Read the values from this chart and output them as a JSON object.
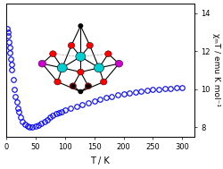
{
  "title": "",
  "xlabel": "T / K",
  "ylabel": "χₘT / emu K mol⁻¹",
  "xlim": [
    0,
    320
  ],
  "ylim": [
    7.5,
    14.5
  ],
  "yticks": [
    8,
    10,
    12,
    14
  ],
  "xticks": [
    0,
    50,
    100,
    150,
    200,
    250,
    300
  ],
  "marker_color": "blue",
  "marker": "o",
  "marker_size": 4,
  "bg_color": "#ffffff",
  "data_T": [
    2,
    3,
    4,
    5,
    6,
    7,
    8,
    9,
    10,
    12,
    14,
    16,
    18,
    20,
    22,
    25,
    28,
    32,
    36,
    40,
    45,
    50,
    55,
    60,
    65,
    70,
    75,
    80,
    85,
    90,
    95,
    100,
    110,
    120,
    130,
    140,
    150,
    160,
    170,
    180,
    190,
    200,
    210,
    220,
    230,
    240,
    250,
    260,
    270,
    280,
    290,
    300
  ],
  "data_chiT": [
    13.2,
    13.0,
    12.8,
    12.5,
    12.2,
    11.9,
    11.6,
    11.3,
    11.0,
    10.5,
    10.0,
    9.6,
    9.3,
    9.0,
    8.8,
    8.5,
    8.3,
    8.15,
    8.05,
    8.0,
    8.0,
    8.05,
    8.1,
    8.2,
    8.3,
    8.4,
    8.5,
    8.6,
    8.7,
    8.75,
    8.82,
    8.88,
    8.98,
    9.08,
    9.18,
    9.28,
    9.38,
    9.48,
    9.55,
    9.62,
    9.68,
    9.74,
    9.8,
    9.85,
    9.9,
    9.94,
    9.97,
    10.0,
    10.02,
    10.04,
    10.06,
    10.08
  ]
}
